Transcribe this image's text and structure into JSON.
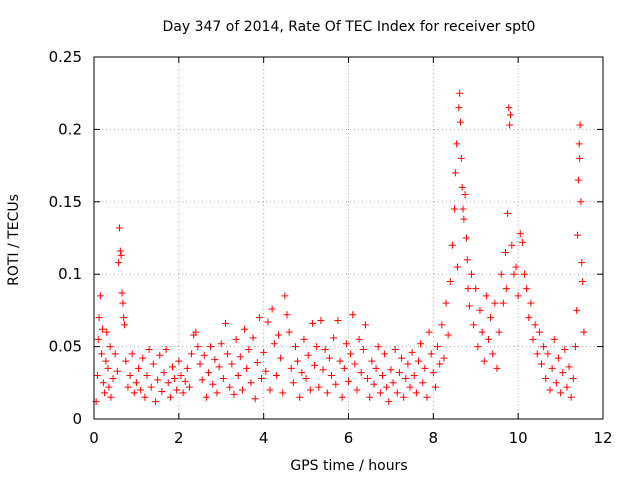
{
  "chart_data": {
    "type": "scatter",
    "title": "Day 347 of 2014, Rate Of TEC Index for receiver spt0",
    "xlabel": "GPS time / hours",
    "ylabel": "ROTI / TECUs",
    "xlim": [
      0,
      12
    ],
    "ylim": [
      0,
      0.25
    ],
    "xticks": [
      {
        "value": 0,
        "label": "0"
      },
      {
        "value": 2,
        "label": "2"
      },
      {
        "value": 4,
        "label": "4"
      },
      {
        "value": 6,
        "label": "6"
      },
      {
        "value": 8,
        "label": "8"
      },
      {
        "value": 10,
        "label": "10"
      },
      {
        "value": 12,
        "label": "12"
      }
    ],
    "yticks": [
      {
        "value": 0,
        "label": "0"
      },
      {
        "value": 0.05,
        "label": "0.05"
      },
      {
        "value": 0.1,
        "label": "0.1"
      },
      {
        "value": 0.15,
        "label": "0.15"
      },
      {
        "value": 0.2,
        "label": "0.2"
      },
      {
        "value": 0.25,
        "label": "0.25"
      }
    ],
    "grid": true,
    "marker": "+",
    "color": "#ff0000",
    "series": [
      {
        "name": "ROTI",
        "points": [
          [
            0.05,
            0.012
          ],
          [
            0.08,
            0.03
          ],
          [
            0.1,
            0.055
          ],
          [
            0.12,
            0.07
          ],
          [
            0.15,
            0.085
          ],
          [
            0.18,
            0.045
          ],
          [
            0.2,
            0.062
          ],
          [
            0.22,
            0.025
          ],
          [
            0.25,
            0.018
          ],
          [
            0.28,
            0.04
          ],
          [
            0.3,
            0.06
          ],
          [
            0.33,
            0.035
          ],
          [
            0.35,
            0.022
          ],
          [
            0.38,
            0.05
          ],
          [
            0.4,
            0.015
          ],
          [
            0.45,
            0.028
          ],
          [
            0.5,
            0.045
          ],
          [
            0.55,
            0.033
          ],
          [
            0.58,
            0.108
          ],
          [
            0.6,
            0.132
          ],
          [
            0.62,
            0.116
          ],
          [
            0.64,
            0.113
          ],
          [
            0.66,
            0.087
          ],
          [
            0.68,
            0.08
          ],
          [
            0.7,
            0.07
          ],
          [
            0.72,
            0.065
          ],
          [
            0.75,
            0.04
          ],
          [
            0.8,
            0.022
          ],
          [
            0.85,
            0.03
          ],
          [
            0.9,
            0.045
          ],
          [
            0.95,
            0.018
          ],
          [
            1.0,
            0.025
          ],
          [
            1.05,
            0.035
          ],
          [
            1.1,
            0.02
          ],
          [
            1.15,
            0.042
          ],
          [
            1.2,
            0.015
          ],
          [
            1.25,
            0.03
          ],
          [
            1.3,
            0.048
          ],
          [
            1.35,
            0.022
          ],
          [
            1.4,
            0.038
          ],
          [
            1.45,
            0.012
          ],
          [
            1.5,
            0.027
          ],
          [
            1.55,
            0.044
          ],
          [
            1.6,
            0.019
          ],
          [
            1.65,
            0.032
          ],
          [
            1.7,
            0.048
          ],
          [
            1.75,
            0.025
          ],
          [
            1.8,
            0.015
          ],
          [
            1.85,
            0.036
          ],
          [
            1.9,
            0.028
          ],
          [
            1.95,
            0.02
          ],
          [
            2.0,
            0.04
          ],
          [
            2.05,
            0.03
          ],
          [
            2.1,
            0.018
          ],
          [
            2.15,
            0.026
          ],
          [
            2.2,
            0.035
          ],
          [
            2.25,
            0.022
          ],
          [
            2.3,
            0.045
          ],
          [
            2.35,
            0.058
          ],
          [
            2.4,
            0.06
          ],
          [
            2.45,
            0.05
          ],
          [
            2.5,
            0.038
          ],
          [
            2.55,
            0.027
          ],
          [
            2.6,
            0.044
          ],
          [
            2.65,
            0.015
          ],
          [
            2.7,
            0.032
          ],
          [
            2.75,
            0.05
          ],
          [
            2.8,
            0.024
          ],
          [
            2.85,
            0.041
          ],
          [
            2.9,
            0.018
          ],
          [
            2.95,
            0.036
          ],
          [
            3.0,
            0.052
          ],
          [
            3.05,
            0.028
          ],
          [
            3.1,
            0.066
          ],
          [
            3.15,
            0.045
          ],
          [
            3.2,
            0.022
          ],
          [
            3.25,
            0.038
          ],
          [
            3.3,
            0.017
          ],
          [
            3.35,
            0.055
          ],
          [
            3.4,
            0.03
          ],
          [
            3.45,
            0.043
          ],
          [
            3.5,
            0.02
          ],
          [
            3.55,
            0.062
          ],
          [
            3.6,
            0.035
          ],
          [
            3.65,
            0.048
          ],
          [
            3.7,
            0.025
          ],
          [
            3.75,
            0.056
          ],
          [
            3.8,
            0.014
          ],
          [
            3.85,
            0.039
          ],
          [
            3.9,
            0.07
          ],
          [
            3.95,
            0.028
          ],
          [
            4.0,
            0.046
          ],
          [
            4.05,
            0.033
          ],
          [
            4.1,
            0.067
          ],
          [
            4.15,
            0.02
          ],
          [
            4.2,
            0.076
          ],
          [
            4.25,
            0.052
          ],
          [
            4.3,
            0.03
          ],
          [
            4.35,
            0.058
          ],
          [
            4.4,
            0.042
          ],
          [
            4.45,
            0.018
          ],
          [
            4.5,
            0.085
          ],
          [
            4.55,
            0.072
          ],
          [
            4.6,
            0.06
          ],
          [
            4.65,
            0.035
          ],
          [
            4.7,
            0.025
          ],
          [
            4.75,
            0.05
          ],
          [
            4.8,
            0.04
          ],
          [
            4.85,
            0.015
          ],
          [
            4.9,
            0.032
          ],
          [
            4.95,
            0.055
          ],
          [
            5.0,
            0.028
          ],
          [
            5.05,
            0.044
          ],
          [
            5.1,
            0.02
          ],
          [
            5.15,
            0.066
          ],
          [
            5.2,
            0.037
          ],
          [
            5.25,
            0.05
          ],
          [
            5.3,
            0.022
          ],
          [
            5.35,
            0.068
          ],
          [
            5.4,
            0.034
          ],
          [
            5.45,
            0.048
          ],
          [
            5.5,
            0.018
          ],
          [
            5.55,
            0.042
          ],
          [
            5.6,
            0.03
          ],
          [
            5.65,
            0.056
          ],
          [
            5.7,
            0.024
          ],
          [
            5.75,
            0.068
          ],
          [
            5.8,
            0.04
          ],
          [
            5.85,
            0.015
          ],
          [
            5.9,
            0.035
          ],
          [
            5.95,
            0.052
          ],
          [
            6.0,
            0.026
          ],
          [
            6.05,
            0.045
          ],
          [
            6.1,
            0.072
          ],
          [
            6.15,
            0.038
          ],
          [
            6.2,
            0.02
          ],
          [
            6.25,
            0.055
          ],
          [
            6.3,
            0.032
          ],
          [
            6.35,
            0.048
          ],
          [
            6.4,
            0.065
          ],
          [
            6.45,
            0.028
          ],
          [
            6.5,
            0.015
          ],
          [
            6.55,
            0.04
          ],
          [
            6.6,
            0.024
          ],
          [
            6.65,
            0.035
          ],
          [
            6.7,
            0.05
          ],
          [
            6.75,
            0.018
          ],
          [
            6.8,
            0.03
          ],
          [
            6.85,
            0.045
          ],
          [
            6.9,
            0.022
          ],
          [
            6.95,
            0.012
          ],
          [
            7.0,
            0.034
          ],
          [
            7.05,
            0.025
          ],
          [
            7.1,
            0.048
          ],
          [
            7.15,
            0.018
          ],
          [
            7.2,
            0.032
          ],
          [
            7.25,
            0.042
          ],
          [
            7.3,
            0.015
          ],
          [
            7.35,
            0.028
          ],
          [
            7.4,
            0.038
          ],
          [
            7.45,
            0.022
          ],
          [
            7.5,
            0.046
          ],
          [
            7.55,
            0.03
          ],
          [
            7.6,
            0.018
          ],
          [
            7.65,
            0.04
          ],
          [
            7.7,
            0.052
          ],
          [
            7.75,
            0.025
          ],
          [
            7.8,
            0.035
          ],
          [
            7.85,
            0.015
          ],
          [
            7.9,
            0.06
          ],
          [
            7.95,
            0.045
          ],
          [
            8.0,
            0.032
          ],
          [
            8.05,
            0.022
          ],
          [
            8.1,
            0.05
          ],
          [
            8.15,
            0.038
          ],
          [
            8.2,
            0.065
          ],
          [
            8.25,
            0.042
          ],
          [
            8.3,
            0.08
          ],
          [
            8.35,
            0.058
          ],
          [
            8.4,
            0.095
          ],
          [
            8.45,
            0.12
          ],
          [
            8.5,
            0.145
          ],
          [
            8.52,
            0.17
          ],
          [
            8.55,
            0.19
          ],
          [
            8.57,
            0.105
          ],
          [
            8.6,
            0.215
          ],
          [
            8.62,
            0.225
          ],
          [
            8.64,
            0.205
          ],
          [
            8.66,
            0.18
          ],
          [
            8.68,
            0.16
          ],
          [
            8.7,
            0.145
          ],
          [
            8.72,
            0.138
          ],
          [
            8.75,
            0.155
          ],
          [
            8.78,
            0.125
          ],
          [
            8.8,
            0.11
          ],
          [
            8.82,
            0.09
          ],
          [
            8.85,
            0.078
          ],
          [
            8.9,
            0.1
          ],
          [
            8.95,
            0.065
          ],
          [
            9.0,
            0.09
          ],
          [
            9.05,
            0.05
          ],
          [
            9.1,
            0.075
          ],
          [
            9.15,
            0.06
          ],
          [
            9.2,
            0.04
          ],
          [
            9.25,
            0.085
          ],
          [
            9.3,
            0.055
          ],
          [
            9.35,
            0.07
          ],
          [
            9.4,
            0.045
          ],
          [
            9.45,
            0.08
          ],
          [
            9.5,
            0.035
          ],
          [
            9.55,
            0.06
          ],
          [
            9.6,
            0.1
          ],
          [
            9.65,
            0.08
          ],
          [
            9.7,
            0.115
          ],
          [
            9.72,
            0.09
          ],
          [
            9.75,
            0.142
          ],
          [
            9.78,
            0.215
          ],
          [
            9.8,
            0.203
          ],
          [
            9.82,
            0.21
          ],
          [
            9.85,
            0.12
          ],
          [
            9.9,
            0.1
          ],
          [
            9.95,
            0.105
          ],
          [
            10.0,
            0.085
          ],
          [
            10.05,
            0.128
          ],
          [
            10.1,
            0.122
          ],
          [
            10.15,
            0.1
          ],
          [
            10.2,
            0.09
          ],
          [
            10.25,
            0.07
          ],
          [
            10.3,
            0.08
          ],
          [
            10.35,
            0.055
          ],
          [
            10.4,
            0.065
          ],
          [
            10.45,
            0.045
          ],
          [
            10.5,
            0.06
          ],
          [
            10.55,
            0.038
          ],
          [
            10.6,
            0.05
          ],
          [
            10.65,
            0.028
          ],
          [
            10.7,
            0.045
          ],
          [
            10.75,
            0.02
          ],
          [
            10.8,
            0.035
          ],
          [
            10.85,
            0.055
          ],
          [
            10.9,
            0.025
          ],
          [
            10.95,
            0.042
          ],
          [
            11.0,
            0.018
          ],
          [
            11.05,
            0.032
          ],
          [
            11.1,
            0.048
          ],
          [
            11.15,
            0.022
          ],
          [
            11.2,
            0.036
          ],
          [
            11.25,
            0.015
          ],
          [
            11.3,
            0.028
          ],
          [
            11.35,
            0.05
          ],
          [
            11.38,
            0.075
          ],
          [
            11.4,
            0.127
          ],
          [
            11.42,
            0.165
          ],
          [
            11.44,
            0.19
          ],
          [
            11.45,
            0.18
          ],
          [
            11.46,
            0.203
          ],
          [
            11.48,
            0.15
          ],
          [
            11.5,
            0.108
          ],
          [
            11.52,
            0.095
          ],
          [
            11.55,
            0.06
          ]
        ]
      }
    ]
  }
}
